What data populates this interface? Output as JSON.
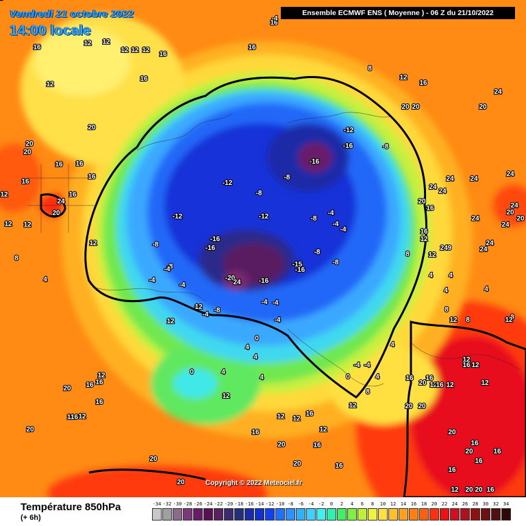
{
  "header": {
    "date": "Vendredi 21 octobre 2022",
    "time": "14:00 locale",
    "model": "Ensemble ECMWF ENS  ( Moyenne )  -  06 Z du 21/10/2022"
  },
  "copyright": "Copyright © 2022 Meteociel.fr",
  "legend": {
    "title": "Température 850hPa",
    "subtitle": "(+ 6h)",
    "scale": [
      {
        "v": "-34",
        "c": "#c8c8c8"
      },
      {
        "v": "-32",
        "c": "#a0a0a0"
      },
      {
        "v": "-30",
        "c": "#8c6a8c"
      },
      {
        "v": "-28",
        "c": "#7a3a7a"
      },
      {
        "v": "-26",
        "c": "#6a1a6a"
      },
      {
        "v": "-24",
        "c": "#5a1050"
      },
      {
        "v": "-22",
        "c": "#5a2060"
      },
      {
        "v": "-20",
        "c": "#3a2a70"
      },
      {
        "v": "-18",
        "c": "#20307a"
      },
      {
        "v": "-16",
        "c": "#1a2aa8"
      },
      {
        "v": "-14",
        "c": "#1030d0"
      },
      {
        "v": "-12",
        "c": "#1040f0"
      },
      {
        "v": "-10",
        "c": "#2070ff"
      },
      {
        "v": "-8",
        "c": "#3090ff"
      },
      {
        "v": "-6",
        "c": "#30b0ff"
      },
      {
        "v": "-4",
        "c": "#40d0ff"
      },
      {
        "v": "-2",
        "c": "#40f0f0"
      },
      {
        "v": "0",
        "c": "#30f0b0"
      },
      {
        "v": "2",
        "c": "#40f060"
      },
      {
        "v": "4",
        "c": "#80f040"
      },
      {
        "v": "6",
        "c": "#c0f030"
      },
      {
        "v": "8",
        "c": "#f0f040"
      },
      {
        "v": "10",
        "c": "#ffe040"
      },
      {
        "v": "12",
        "c": "#ffc030"
      },
      {
        "v": "14",
        "c": "#ffa020"
      },
      {
        "v": "16",
        "c": "#ff8010"
      },
      {
        "v": "18",
        "c": "#ff6010"
      },
      {
        "v": "20",
        "c": "#ff3010"
      },
      {
        "v": "22",
        "c": "#f01010"
      },
      {
        "v": "24",
        "c": "#d01020"
      },
      {
        "v": "26",
        "c": "#b01020"
      },
      {
        "v": "28",
        "c": "#901010"
      },
      {
        "v": "30",
        "c": "#701010"
      },
      {
        "v": "32",
        "c": "#501010"
      },
      {
        "v": "34",
        "c": "#300808"
      }
    ]
  },
  "map_labels": [
    {
      "t": "16"
    },
    {
      "t": "12"
    },
    {
      "t": "12"
    },
    {
      "t": "16"
    },
    {
      "t": "16"
    },
    {
      "t": "12"
    },
    {
      "t": "12"
    },
    {
      "t": "12"
    },
    {
      "t": "16"
    },
    {
      "t": "16"
    },
    {
      "t": "12"
    },
    {
      "t": "12"
    },
    {
      "t": "20"
    },
    {
      "t": "20"
    },
    {
      "t": "20"
    },
    {
      "t": "16"
    },
    {
      "t": "16"
    },
    {
      "t": "16"
    },
    {
      "t": "12"
    },
    {
      "t": "16"
    },
    {
      "t": "24"
    },
    {
      "t": "16"
    },
    {
      "t": "20"
    },
    {
      "t": "12"
    },
    {
      "t": "8"
    },
    {
      "t": "12"
    },
    {
      "t": "12"
    },
    {
      "t": "8"
    },
    {
      "t": "4"
    },
    {
      "t": "-12"
    },
    {
      "t": "-16"
    },
    {
      "t": "-8"
    },
    {
      "t": "-16"
    },
    {
      "t": "-12"
    },
    {
      "t": "-8"
    },
    {
      "t": "-8"
    },
    {
      "t": "-12"
    },
    {
      "t": "-12"
    },
    {
      "t": "-8"
    },
    {
      "t": "-16"
    },
    {
      "t": "-16"
    },
    {
      "t": "-4"
    },
    {
      "t": "-4"
    },
    {
      "t": "-4"
    },
    {
      "t": "-8"
    },
    {
      "t": "-8"
    },
    {
      "t": "-15"
    },
    {
      "t": "-16"
    },
    {
      "t": "-20"
    },
    {
      "t": "24"
    },
    {
      "t": "-16"
    },
    {
      "t": "-8"
    },
    {
      "t": "-4"
    },
    {
      "t": "-4"
    },
    {
      "t": "0"
    },
    {
      "t": "-4"
    },
    {
      "t": "-8"
    },
    {
      "t": "-4"
    },
    {
      "t": "0"
    },
    {
      "t": "4"
    },
    {
      "t": "4"
    },
    {
      "t": "0"
    },
    {
      "t": "4"
    },
    {
      "t": "4"
    },
    {
      "t": "-4"
    },
    {
      "t": "-4"
    },
    {
      "t": "0"
    },
    {
      "t": "4"
    },
    {
      "t": "4"
    },
    {
      "t": "8"
    },
    {
      "t": "12"
    },
    {
      "t": "12"
    },
    {
      "t": "12"
    },
    {
      "t": "16"
    },
    {
      "t": "12"
    },
    {
      "t": "16"
    },
    {
      "t": "12"
    },
    {
      "t": "20"
    },
    {
      "t": "16"
    },
    {
      "t": "20"
    },
    {
      "t": "16"
    },
    {
      "t": "20"
    },
    {
      "t": "20"
    },
    {
      "t": "12"
    },
    {
      "t": "16"
    },
    {
      "t": "16"
    },
    {
      "t": "20"
    },
    {
      "t": "20"
    },
    {
      "t": "20"
    },
    {
      "t": "24"
    },
    {
      "t": "24"
    },
    {
      "t": "24"
    },
    {
      "t": "24"
    },
    {
      "t": "24"
    },
    {
      "t": "20"
    },
    {
      "t": "20"
    },
    {
      "t": "24"
    },
    {
      "t": "24"
    },
    {
      "t": "24"
    },
    {
      "t": "24"
    },
    {
      "t": "24"
    },
    {
      "t": "24"
    },
    {
      "t": "249"
    },
    {
      "t": "20"
    },
    {
      "t": "16"
    },
    {
      "t": "16"
    },
    {
      "t": "12"
    },
    {
      "t": "12"
    },
    {
      "t": "8"
    },
    {
      "t": "4"
    },
    {
      "t": "4"
    },
    {
      "t": "8"
    },
    {
      "t": "4"
    },
    {
      "t": "4"
    },
    {
      "t": "8"
    },
    {
      "t": "12"
    },
    {
      "t": "8"
    },
    {
      "t": "12"
    },
    {
      "t": "12"
    },
    {
      "t": "12"
    },
    {
      "t": "16"
    },
    {
      "t": "16"
    },
    {
      "t": "16"
    },
    {
      "t": "12"
    },
    {
      "t": "12"
    },
    {
      "t": "20"
    },
    {
      "t": "20"
    },
    {
      "t": "16"
    },
    {
      "t": "20"
    },
    {
      "t": "16"
    },
    {
      "t": "16"
    },
    {
      "t": "16"
    },
    {
      "t": "12"
    },
    {
      "t": "20"
    },
    {
      "t": "20"
    },
    {
      "t": "16"
    },
    {
      "t": "20"
    },
    {
      "t": "20"
    },
    {
      "t": "116"
    },
    {
      "t": "16"
    },
    {
      "t": "20"
    },
    {
      "t": "16"
    },
    {
      "t": "20"
    },
    {
      "t": "12"
    },
    {
      "t": "12"
    },
    {
      "t": "16"
    },
    {
      "t": "12"
    },
    {
      "t": "12"
    },
    {
      "t": "-4"
    },
    {
      "t": "-8"
    },
    {
      "t": "-4"
    },
    {
      "t": "-4"
    },
    {
      "t": "-4"
    },
    {
      "t": "-4"
    },
    {
      "t": "4"
    },
    {
      "t": "8"
    }
  ]
}
